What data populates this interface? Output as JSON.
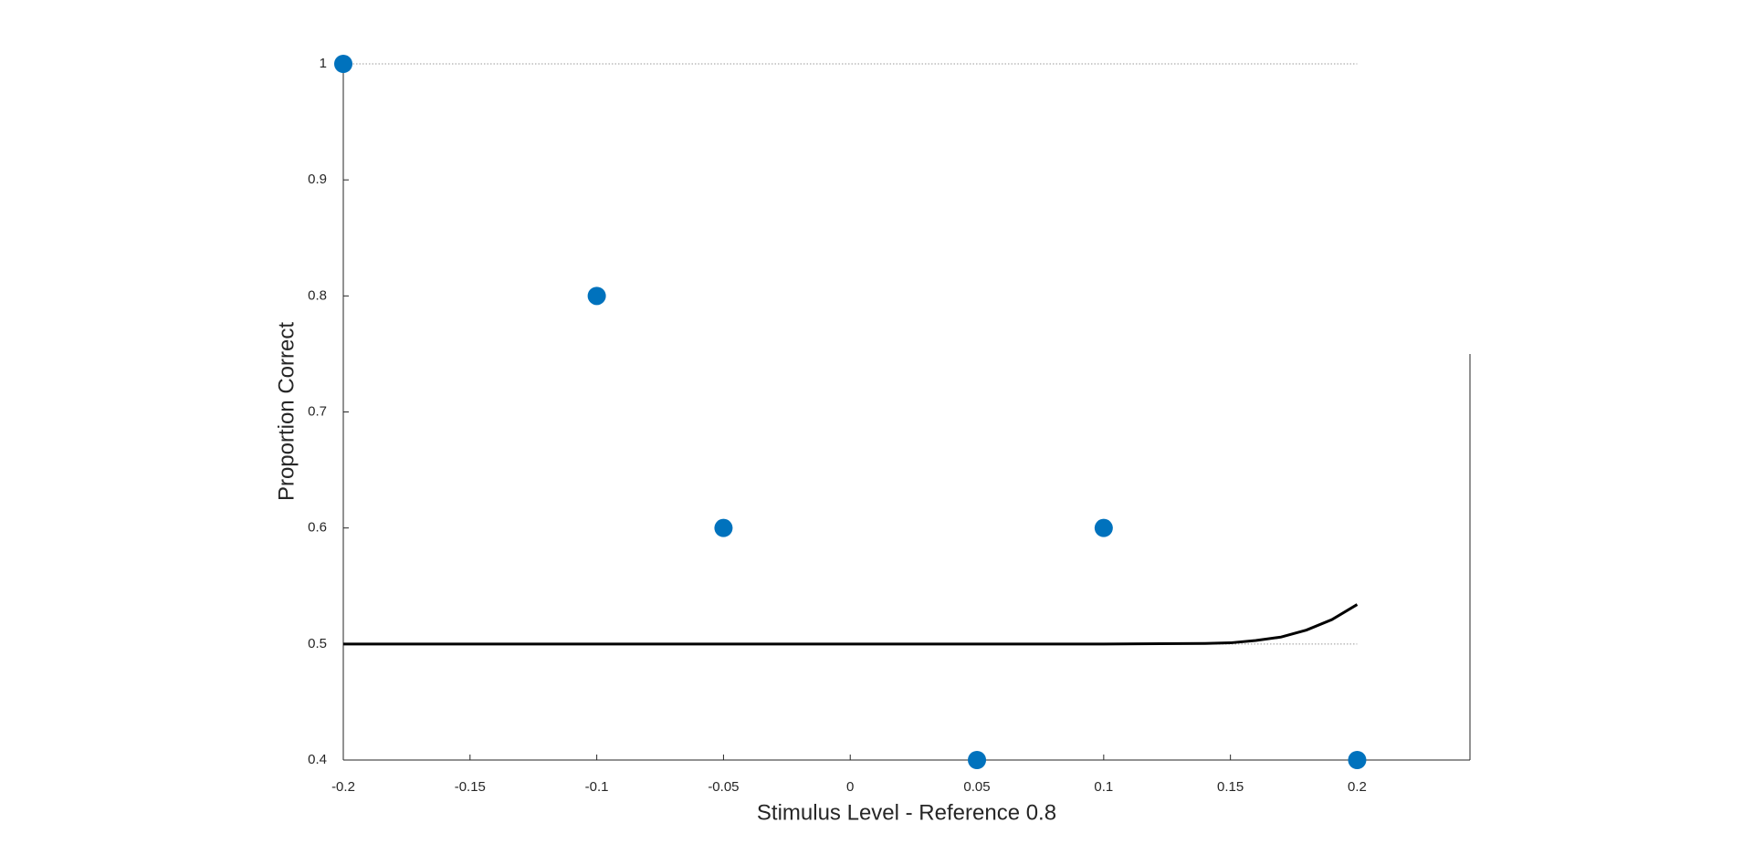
{
  "chart_data": {
    "type": "scatter",
    "xlabel": "Stimulus Level - Reference 0.8",
    "ylabel": "Proportion Correct",
    "xlim": [
      -0.2,
      0.2445
    ],
    "ylim": [
      0.4,
      1
    ],
    "xticks": [
      -0.2,
      -0.15,
      -0.1,
      -0.05,
      0,
      0.05,
      0.1,
      0.15,
      0.2
    ],
    "yticks": [
      0.4,
      0.5,
      0.6,
      0.7,
      0.8,
      0.9,
      1
    ],
    "hlines": [
      0.5,
      1
    ],
    "series": [
      {
        "type": "scatter",
        "color": "#0072bd",
        "x": [
          -0.2,
          -0.1,
          -0.05,
          0.05,
          0.1,
          0.2
        ],
        "values": [
          1,
          0.8,
          0.6,
          0.4,
          0.6,
          0.4
        ]
      },
      {
        "type": "line",
        "color": "#000000",
        "x": [
          -0.2,
          0.1,
          0.14,
          0.15,
          0.16,
          0.17,
          0.18,
          0.19,
          0.2
        ],
        "values": [
          0.5,
          0.5,
          0.5005,
          0.501,
          0.503,
          0.506,
          0.512,
          0.521,
          0.534
        ]
      }
    ]
  }
}
